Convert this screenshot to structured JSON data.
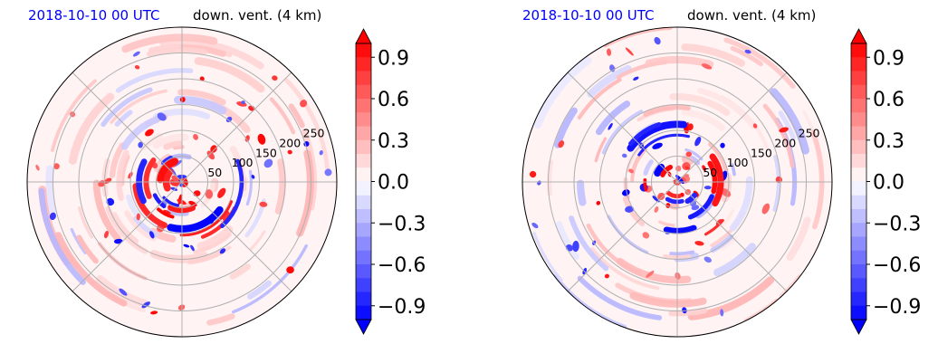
{
  "chart_data": [
    {
      "type": "heatmap",
      "projection": "polar",
      "title_left": "2018-10-10 00 UTC",
      "title_right": "down. vent. (4 km)",
      "title_left_color": "#0000ff",
      "radial_ticks": [
        "50",
        "100",
        "150",
        "200",
        "250"
      ],
      "radial_tick_values": [
        50,
        100,
        150,
        200,
        250
      ],
      "r_max": 300,
      "angular_grid_deg": [
        0,
        45,
        90,
        135,
        180,
        225,
        270,
        315
      ],
      "grid": true,
      "colormap": "bwr",
      "colorbar": {
        "ticks": [
          "0.9",
          "0.6",
          "0.3",
          "0.0",
          "−0.3",
          "−0.6",
          "−0.9"
        ],
        "tick_values": [
          0.9,
          0.6,
          0.3,
          0.0,
          -0.3,
          -0.6,
          -0.9
        ],
        "range": [
          -1.0,
          1.0
        ],
        "extend": "both"
      }
    },
    {
      "type": "heatmap",
      "projection": "polar",
      "title_left": "2018-10-10 00 UTC",
      "title_right": "down. vent. (4 km)",
      "title_left_color": "#0000ff",
      "radial_ticks": [
        "50",
        "100",
        "150",
        "200",
        "250"
      ],
      "radial_tick_values": [
        50,
        100,
        150,
        200,
        250
      ],
      "r_max": 300,
      "angular_grid_deg": [
        0,
        45,
        90,
        135,
        180,
        225,
        270,
        315
      ],
      "grid": true,
      "colormap": "bwr",
      "colorbar": {
        "ticks": [
          "0.9",
          "0.6",
          "0.3",
          "0.0",
          "−0.3",
          "−0.6",
          "−0.9"
        ],
        "tick_values": [
          0.9,
          0.6,
          0.3,
          0.0,
          -0.3,
          -0.6,
          -0.9
        ],
        "range": [
          -1.0,
          1.0
        ],
        "extend": "both"
      }
    }
  ]
}
